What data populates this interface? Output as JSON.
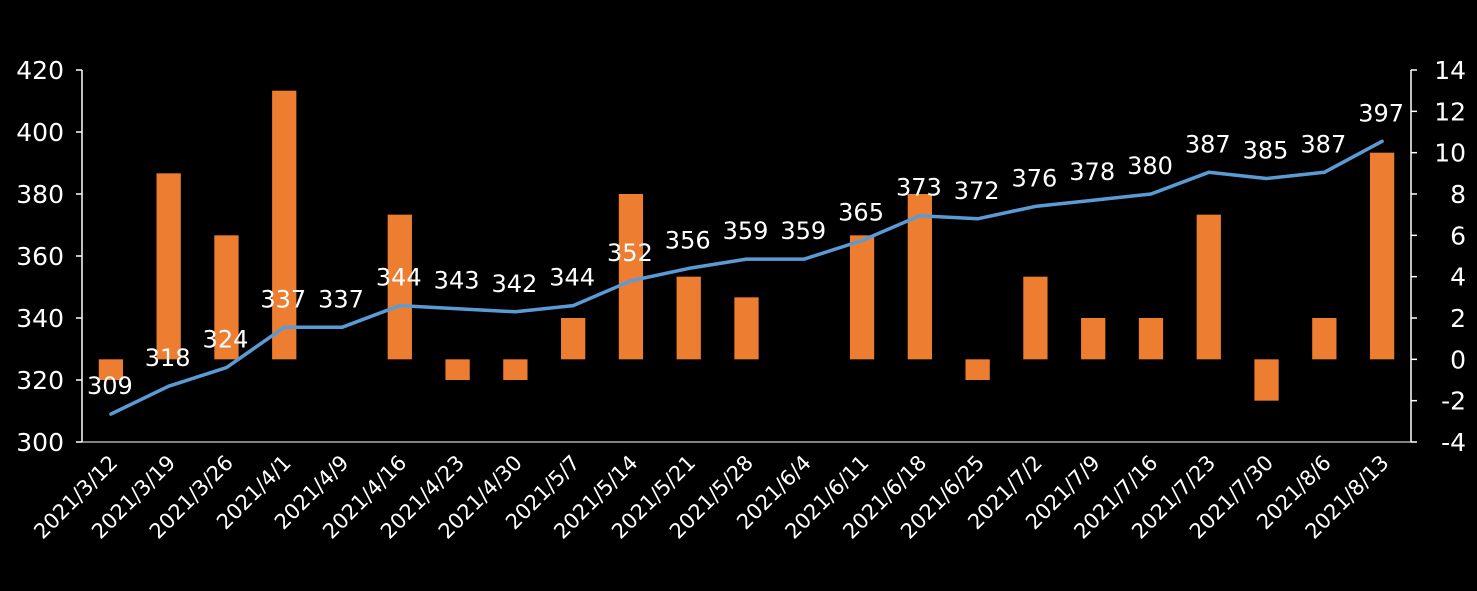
{
  "chart_data": {
    "type": "bar+line",
    "title": "",
    "categories": [
      "2021/3/12",
      "2021/3/19",
      "2021/3/26",
      "2021/4/1",
      "2021/4/9",
      "2021/4/16",
      "2021/4/23",
      "2021/4/30",
      "2021/5/7",
      "2021/5/14",
      "2021/5/21",
      "2021/5/28",
      "2021/6/4",
      "2021/6/11",
      "2021/6/18",
      "2021/6/25",
      "2021/7/2",
      "2021/7/9",
      "2021/7/16",
      "2021/7/23",
      "2021/7/30",
      "2021/8/6",
      "2021/8/13"
    ],
    "series": [
      {
        "name": "line",
        "type": "line",
        "axis": "left",
        "color": "#5B9BD5",
        "values": [
          309,
          318,
          324,
          337,
          337,
          344,
          343,
          342,
          344,
          352,
          356,
          359,
          359,
          365,
          373,
          372,
          376,
          378,
          380,
          387,
          385,
          387,
          397
        ]
      },
      {
        "name": "bar",
        "type": "bar",
        "axis": "right",
        "color": "#ED7D31",
        "values": [
          -1,
          9,
          6,
          13,
          0,
          7,
          -1,
          -1,
          2,
          8,
          4,
          3,
          0,
          6,
          8,
          -1,
          4,
          2,
          2,
          7,
          -2,
          2,
          10
        ]
      }
    ],
    "left_axis": {
      "ylim": [
        300,
        420
      ],
      "ticks": [
        "300",
        "320",
        "340",
        "360",
        "380",
        "400",
        "420"
      ]
    },
    "right_axis": {
      "ylim": [
        -4,
        14
      ],
      "ticks": [
        "-4",
        "-2",
        "0",
        "2",
        "4",
        "6",
        "8",
        "10",
        "12",
        "14"
      ]
    },
    "grid": false,
    "legend": "none"
  }
}
